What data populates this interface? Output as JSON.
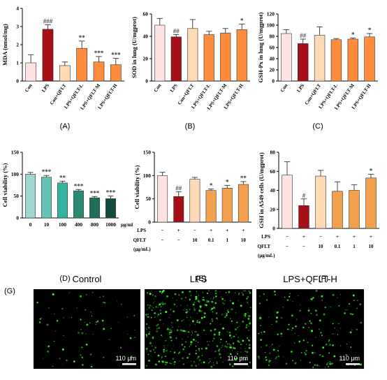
{
  "figure_label_g": "(G)",
  "micro_panels": [
    {
      "title": "Control",
      "scale_text": "110 μm",
      "dot_density": 0.18
    },
    {
      "title": "LPS",
      "scale_text": "110 μm",
      "dot_density": 1.0
    },
    {
      "title": "LPS+QFLT-H",
      "scale_text": "110 μm",
      "dot_density": 0.4
    }
  ],
  "colors": {
    "pink": "#fde2e2",
    "darkred": "#a50f15",
    "peach": "#fdd9b5",
    "orange": "#fd8d3c",
    "orange2": "#f4a14f",
    "teal1": "#9fd6d0",
    "teal2": "#66c2b6",
    "teal3": "#34b39d",
    "teal4": "#2b8a74",
    "teal5": "#1f6f5c",
    "teal6": "#124c3f",
    "microgreen": "#3cff2e"
  },
  "chart_data": [
    {
      "id": "A",
      "panel_label": "(A)",
      "type": "bar",
      "ylabel": "MDA (nmol/mg)",
      "ylim": [
        0,
        4
      ],
      "yticks": [
        "0",
        "1",
        "2",
        "3",
        "4"
      ],
      "categories": [
        "Con",
        "LPS",
        "Con+QFLT",
        "LPS+QFLT-L",
        "LPS+QFLT-M",
        "LPS+QFLT-H"
      ],
      "values": [
        1.0,
        2.85,
        0.85,
        1.8,
        1.05,
        0.9
      ],
      "errors": [
        0.45,
        0.25,
        0.2,
        0.4,
        0.3,
        0.35
      ],
      "colors": [
        "#fde2e2",
        "#a50f15",
        "#fdd9b5",
        "#fd8d3c",
        "#fd8d3c",
        "#fd8d3c"
      ],
      "annotations": [
        "",
        "###",
        "",
        "**",
        "***",
        "***"
      ]
    },
    {
      "id": "B",
      "panel_label": "(B)",
      "type": "bar",
      "ylabel": "SOD in lung (U/mgprot)",
      "ylim": [
        0,
        60
      ],
      "yticks": [
        "0",
        "20",
        "40",
        "60"
      ],
      "categories": [
        "Con",
        "LPS",
        "Con+QFLT",
        "LPS+QFLT-L",
        "LPS+QFLT-M",
        "LPS+QFLT-H"
      ],
      "values": [
        50,
        39.5,
        47,
        41.5,
        43,
        46
      ],
      "errors": [
        6,
        2,
        8,
        3,
        4,
        5
      ],
      "colors": [
        "#fde2e2",
        "#a50f15",
        "#fdd9b5",
        "#fd8d3c",
        "#fd8d3c",
        "#fd8d3c"
      ],
      "annotations": [
        "",
        "##",
        "",
        "",
        "",
        "*"
      ]
    },
    {
      "id": "C",
      "panel_label": "(C)",
      "type": "bar",
      "ylabel": "GSH-Px in lung (U/mgprot)",
      "ylim": [
        0,
        120
      ],
      "yticks": [
        "0",
        "20",
        "40",
        "60",
        "80",
        "100",
        "120"
      ],
      "categories": [
        "Con",
        "LPS",
        "Con+QFLT",
        "LPS+QFLT-L",
        "LPS+QFLT-M",
        "LPS+QFLT-H"
      ],
      "values": [
        85,
        67,
        82,
        74,
        75,
        79
      ],
      "errors": [
        7,
        8,
        15,
        2,
        2,
        6
      ],
      "colors": [
        "#fde2e2",
        "#a50f15",
        "#fdd9b5",
        "#fd8d3c",
        "#fd8d3c",
        "#fd8d3c"
      ],
      "annotations": [
        "",
        "##",
        "",
        "",
        "*",
        "*"
      ]
    },
    {
      "id": "D",
      "panel_label": "(D)",
      "type": "bar",
      "ylabel": "Cell viability (%)",
      "ylim": [
        0,
        150
      ],
      "yticks": [
        "0",
        "50",
        "100",
        "150"
      ],
      "categories": [
        "0",
        "10",
        "100",
        "400",
        "800",
        "1000"
      ],
      "x_unit": "μg/ml",
      "values": [
        100,
        93,
        80,
        62,
        46,
        44
      ],
      "errors": [
        4,
        4,
        4,
        3,
        3,
        6
      ],
      "colors": [
        "#9fd6d0",
        "#66c2b6",
        "#34b39d",
        "#2b8a74",
        "#1f6f5c",
        "#124c3f"
      ],
      "annotations": [
        "",
        "***",
        "**",
        "***",
        "***",
        "***"
      ]
    },
    {
      "id": "E",
      "panel_label": "(E)",
      "type": "bar",
      "ylabel": "Cell viability (%)",
      "ylim": [
        0,
        150
      ],
      "yticks": [
        "0",
        "50",
        "100",
        "150"
      ],
      "values": [
        100,
        55,
        92,
        68,
        73,
        81
      ],
      "errors": [
        7,
        10,
        4,
        3,
        6,
        6
      ],
      "colors": [
        "#fde2e2",
        "#a50f15",
        "#fdd9b5",
        "#f4a14f",
        "#f4a14f",
        "#f4a14f"
      ],
      "annotations": [
        "",
        "##",
        "",
        "*",
        "*",
        "**"
      ],
      "table": {
        "row1_label": "LPS",
        "row1": [
          "−",
          "+",
          "−",
          "+",
          "+",
          "+"
        ],
        "row2_label": "QFLT",
        "row2": [
          "−",
          "−",
          "10",
          "0.1",
          "1",
          "10"
        ],
        "unit": "(μg/mL)"
      }
    },
    {
      "id": "F",
      "panel_label": "(F)",
      "type": "bar",
      "ylabel": "GSH in A549 cells (U/mgprot)",
      "ylim": [
        0,
        80
      ],
      "yticks": [
        "0",
        "20",
        "40",
        "60",
        "80"
      ],
      "values": [
        56,
        24,
        55,
        39,
        40,
        53
      ],
      "errors": [
        14,
        7,
        6,
        10,
        6,
        4
      ],
      "colors": [
        "#fde2e2",
        "#a50f15",
        "#fdd9b5",
        "#f4a14f",
        "#f4a14f",
        "#f4a14f"
      ],
      "annotations": [
        "",
        "#",
        "",
        "",
        "",
        "*"
      ],
      "table": {
        "row1_label": "LPS",
        "row1": [
          "−",
          "+",
          "−",
          "+",
          "+",
          "+"
        ],
        "row2_label": "QFLT",
        "row2": [
          "−",
          "−",
          "10",
          "0.1",
          "1",
          "10"
        ],
        "unit": "(μg/mL)"
      }
    }
  ]
}
